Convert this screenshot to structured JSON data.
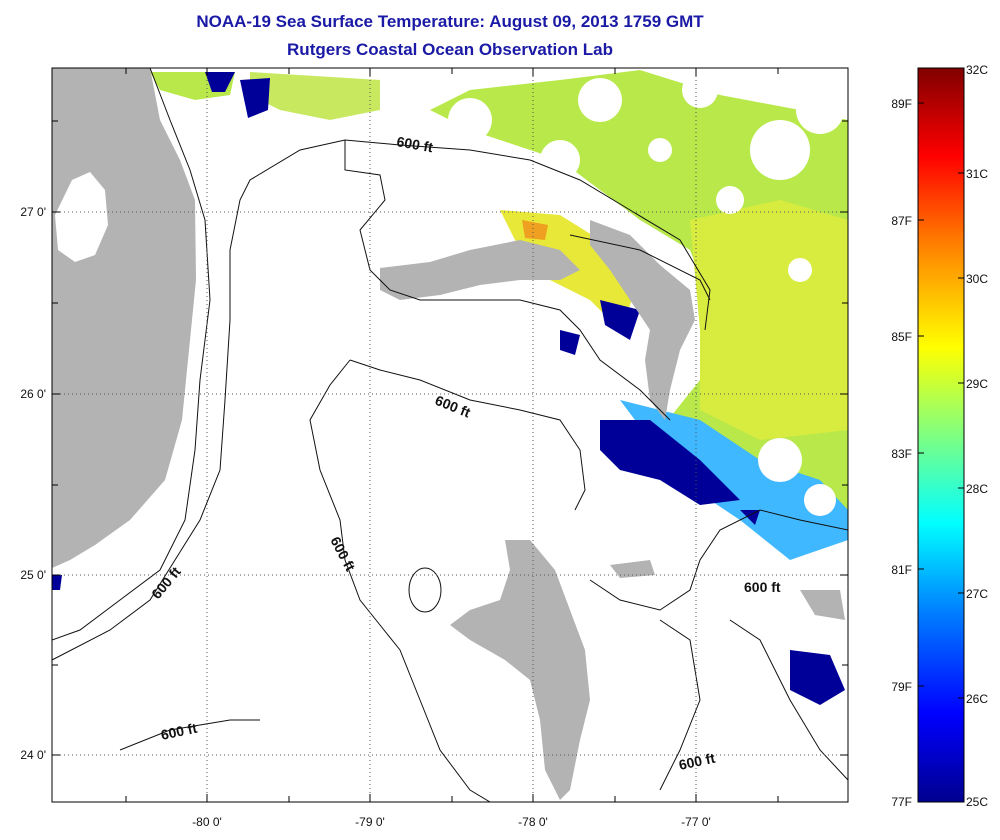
{
  "title": "NOAA-19 Sea Surface Temperature:  August 09, 2013 1759 GMT",
  "subtitle": "Rutgers Coastal Ocean Observation Lab",
  "axes": {
    "x_ticks": [
      "-80 0'",
      "-79 0'",
      "-78 0'",
      "-77 0'"
    ],
    "y_ticks": [
      "27 0'",
      "26 0'",
      "25 0'",
      "24 0'"
    ]
  },
  "contour_labels": [
    "600 ft",
    "600 ft",
    "600 ft",
    "600 ft",
    "600 ft",
    "600 ft"
  ],
  "colorbar": {
    "celsius": [
      "32C",
      "31C",
      "30C",
      "29C",
      "28C",
      "27C",
      "26C",
      "25C"
    ],
    "fahrenheit": [
      "89F",
      "87F",
      "85F",
      "83F",
      "81F",
      "79F",
      "77F"
    ],
    "colors": [
      "#00008f",
      "#0000ff",
      "#0080ff",
      "#00ffff",
      "#80ff80",
      "#ffff00",
      "#ff8000",
      "#ff0000",
      "#800000"
    ]
  },
  "map_colors": {
    "land": "#b3b3b3",
    "cloud": "#ffffff",
    "cold": "#000099",
    "warm_green": "#b8e84a",
    "warm_yellow": "#e8e838"
  }
}
